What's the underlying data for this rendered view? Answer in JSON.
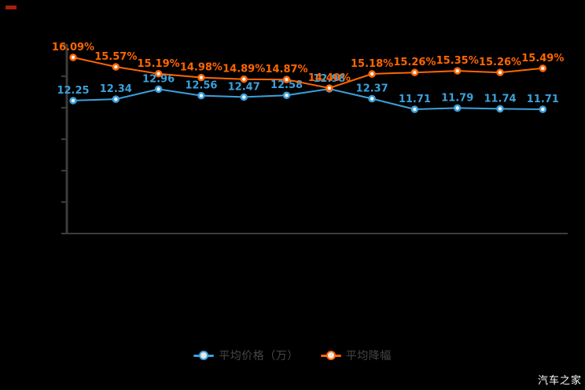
{
  "watermark": "汽车之家",
  "corner_mark_color": "#a31f10",
  "axis_color": "#3c3c3c",
  "legend": {
    "items": [
      {
        "label": "平均价格（万）",
        "series": "price",
        "color": "#3aa1dc"
      },
      {
        "label": "平均降幅",
        "series": "discount",
        "color": "#ff6600"
      }
    ]
  },
  "chart_data": {
    "type": "line",
    "title": "",
    "xlabel": "",
    "ylabel": "",
    "x_tick_labels_visible": false,
    "y_tick_labels_visible": false,
    "grid": false,
    "legend_position": "bottom",
    "point_count": 12,
    "series": [
      {
        "name": "平均价格（万）",
        "color": "#3aa1dc",
        "unit": "万",
        "values": [
          12.25,
          12.34,
          12.96,
          12.56,
          12.47,
          12.58,
          12.98,
          12.37,
          11.71,
          11.79,
          11.74,
          11.71
        ],
        "labels": [
          "12.25",
          "12.34",
          "12.96",
          "12.56",
          "12.47",
          "12.58",
          "12.98",
          "12.37",
          "11.71",
          "11.79",
          "11.74",
          "11.71"
        ]
      },
      {
        "name": "平均降幅",
        "color": "#ff6600",
        "unit": "%",
        "values": [
          16.09,
          15.57,
          15.19,
          14.98,
          14.89,
          14.87,
          14.4,
          15.18,
          15.26,
          15.35,
          15.26,
          15.49
        ],
        "labels": [
          "16.09%",
          "15.57%",
          "15.19%",
          "14.98%",
          "14.89%",
          "14.87%",
          "14.40%",
          "15.18%",
          "15.26%",
          "15.35%",
          "15.26%",
          "15.49%"
        ]
      }
    ]
  }
}
